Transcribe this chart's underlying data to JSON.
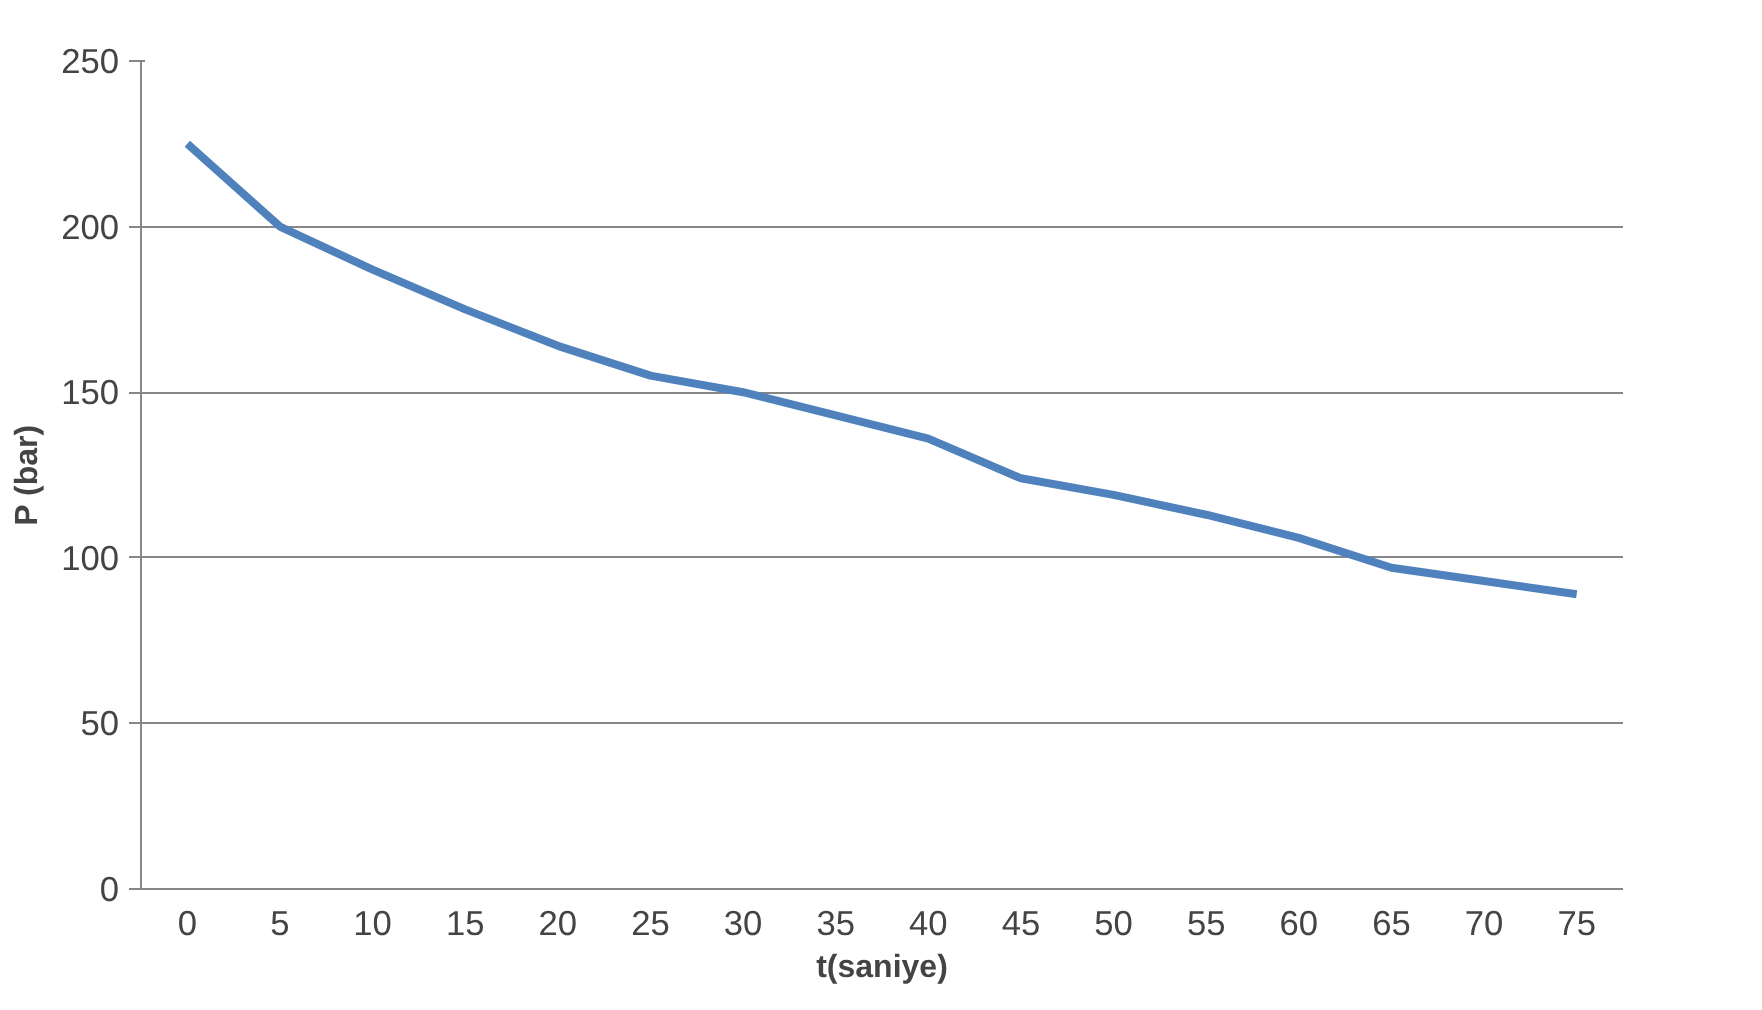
{
  "chart_data": {
    "type": "line",
    "xlabel": "t(saniye)",
    "ylabel": "P (bar)",
    "categories": [
      "0",
      "5",
      "10",
      "15",
      "20",
      "25",
      "30",
      "35",
      "40",
      "45",
      "50",
      "55",
      "60",
      "65",
      "70",
      "75"
    ],
    "series": [
      {
        "color": "#4f81bd",
        "values": [
          225,
          200,
          187,
          175,
          164,
          155,
          150,
          143,
          136,
          124,
          119,
          113,
          106,
          97,
          93,
          89
        ]
      }
    ],
    "ylim": [
      0,
      250
    ],
    "yticks": [
      0,
      50,
      100,
      150,
      200,
      250
    ],
    "grid": "y",
    "marker": "none",
    "line_style": "solid"
  }
}
